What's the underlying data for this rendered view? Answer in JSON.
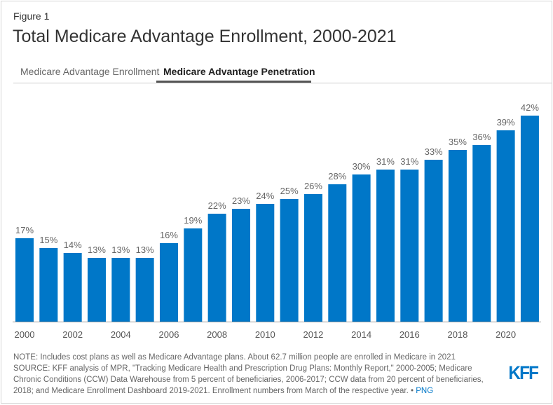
{
  "figure_label": "Figure 1",
  "title": "Total Medicare Advantage Enrollment, 2000-2021",
  "tabs": [
    {
      "label": "Medicare Advantage Enrollment",
      "active": false
    },
    {
      "label": "Medicare Advantage Penetration",
      "active": true
    }
  ],
  "notes": {
    "note": "NOTE: Includes cost plans as well as Medicare Advantage plans. About 62.7 million people are enrolled in Medicare in 2021",
    "source": "SOURCE: KFF analysis of MPR, \"Tracking Medicare Health and Prescription Drug Plans: Monthly Report,\" 2000-2005; Medicare Chronic Conditions (CCW) Data Warehouse from 5 percent of beneficiaries, 2006-2017; CCW data from 20 percent of beneficiaries, 2018; and Medicare Enrollment Dashboard 2019-2021. Enrollment numbers from March of the respective year. •",
    "png_link": "PNG"
  },
  "logo": "KFF",
  "colors": {
    "bar": "#0077c8",
    "text": "#333333"
  },
  "chart_data": {
    "type": "bar",
    "categories": [
      "2000",
      "2001",
      "2002",
      "2003",
      "2004",
      "2005",
      "2006",
      "2007",
      "2008",
      "2009",
      "2010",
      "2011",
      "2012",
      "2013",
      "2014",
      "2015",
      "2016",
      "2017",
      "2018",
      "2019",
      "2020",
      "2021"
    ],
    "values": [
      17,
      15,
      14,
      13,
      13,
      13,
      16,
      19,
      22,
      23,
      24,
      25,
      26,
      28,
      30,
      31,
      31,
      33,
      35,
      36,
      39,
      42
    ],
    "data_labels": [
      "17%",
      "15%",
      "14%",
      "13%",
      "13%",
      "13%",
      "16%",
      "19%",
      "22%",
      "23%",
      "24%",
      "25%",
      "26%",
      "28%",
      "30%",
      "31%",
      "31%",
      "33%",
      "35%",
      "36%",
      "39%",
      "42%"
    ],
    "x_tick_labels": [
      "2000",
      "2002",
      "2004",
      "2006",
      "2008",
      "2010",
      "2012",
      "2014",
      "2016",
      "2018",
      "2020"
    ],
    "ylim": [
      0,
      42
    ],
    "grid": false,
    "xlabel": "",
    "ylabel": ""
  }
}
